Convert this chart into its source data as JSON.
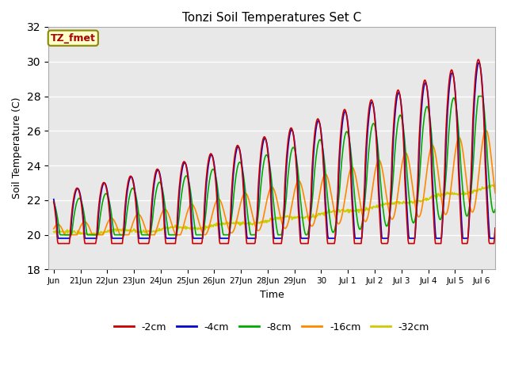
{
  "title": "Tonzi Soil Temperatures Set C",
  "xlabel": "Time",
  "ylabel": "Soil Temperature (C)",
  "ylim": [
    18,
    32
  ],
  "yticks": [
    18,
    20,
    22,
    24,
    26,
    28,
    30,
    32
  ],
  "background_color": "#ffffff",
  "plot_bg_color": "#e8e8e8",
  "series_colors": {
    "-2cm": "#cc0000",
    "-4cm": "#0000cc",
    "-8cm": "#00aa00",
    "-16cm": "#ff8800",
    "-32cm": "#cccc00"
  },
  "annotation_text": "TZ_fmet",
  "annotation_color": "#aa0000",
  "annotation_bg": "#ffffcc",
  "annotation_border": "#888800",
  "tick_labels": [
    "Jun",
    "21Jun",
    "22Jun",
    "23Jun",
    "24Jun",
    "25Jun",
    "26Jun",
    "27Jun",
    "28Jun",
    "29Jun",
    "30",
    "Jul 1",
    "Jul 2",
    "Jul 3",
    "Jul 4",
    "Jul 5",
    "Jul 6"
  ],
  "legend_labels": [
    "-2cm",
    "-4cm",
    "-8cm",
    "-16cm",
    "-32cm"
  ]
}
